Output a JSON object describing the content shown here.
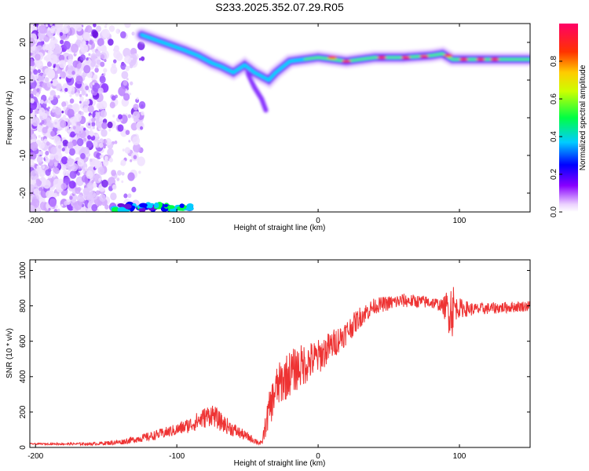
{
  "title": "S233.2025.352.07.29.R05",
  "chart_data": [
    {
      "type": "heatmap",
      "xlabel": "Height of straight line (km)",
      "ylabel": "Frequency (Hz)",
      "xlim": [
        -204,
        150
      ],
      "ylim": [
        -25,
        25
      ],
      "xticks": [
        -200,
        -100,
        0,
        100
      ],
      "yticks": [
        -20,
        -10,
        0,
        10,
        20
      ],
      "colorbar": {
        "label": "Normalized spectral amplitude",
        "range": [
          0,
          1
        ],
        "ticks": [
          "0.0",
          "0.2",
          "0.4",
          "0.6",
          "0.8"
        ],
        "colormap": "rainbow (white-violet-blue-cyan-green-yellow-red-magenta)"
      },
      "ridge": {
        "description": "dominant frequency ridge",
        "x": [
          -125,
          -110,
          -95,
          -85,
          -75,
          -68,
          -60,
          -52,
          -45,
          -40,
          -35,
          -30,
          -20,
          -10,
          0,
          20,
          40,
          60,
          80,
          88,
          95,
          110,
          130,
          150
        ],
        "y": [
          22,
          20,
          18,
          16.5,
          14.5,
          13.5,
          12,
          14,
          12,
          11,
          10,
          12,
          15,
          15.5,
          16,
          15,
          16,
          16,
          16.5,
          17,
          15.5,
          15.5,
          15.5,
          15.5
        ]
      },
      "grid": false
    },
    {
      "type": "line",
      "xlabel": "Height of straight line (km)",
      "ylabel": "SNR (10 * v/v)",
      "xlim": [
        -204,
        150
      ],
      "ylim": [
        0,
        1060
      ],
      "xticks": [
        -200,
        -100,
        0,
        100
      ],
      "yticks": [
        0,
        200,
        400,
        600,
        800,
        1000
      ],
      "color": "#ee3333",
      "series_envelope": {
        "x": [
          -204,
          -160,
          -140,
          -120,
          -100,
          -90,
          -80,
          -75,
          -70,
          -60,
          -50,
          -40,
          -35,
          -30,
          -25,
          -20,
          -10,
          0,
          10,
          20,
          30,
          40,
          60,
          80,
          88,
          92,
          95,
          98,
          110,
          130,
          150
        ],
        "y": [
          20,
          20,
          30,
          60,
          100,
          130,
          170,
          190,
          150,
          100,
          60,
          20,
          200,
          330,
          380,
          420,
          470,
          510,
          580,
          650,
          740,
          800,
          830,
          820,
          800,
          780,
          790,
          790,
          780,
          790,
          800
        ],
        "noise": [
          4,
          8,
          15,
          25,
          35,
          45,
          60,
          65,
          55,
          40,
          25,
          15,
          100,
          120,
          130,
          130,
          120,
          100,
          85,
          70,
          60,
          45,
          40,
          35,
          35,
          130,
          170,
          60,
          35,
          32,
          30
        ]
      },
      "grid": false
    }
  ]
}
